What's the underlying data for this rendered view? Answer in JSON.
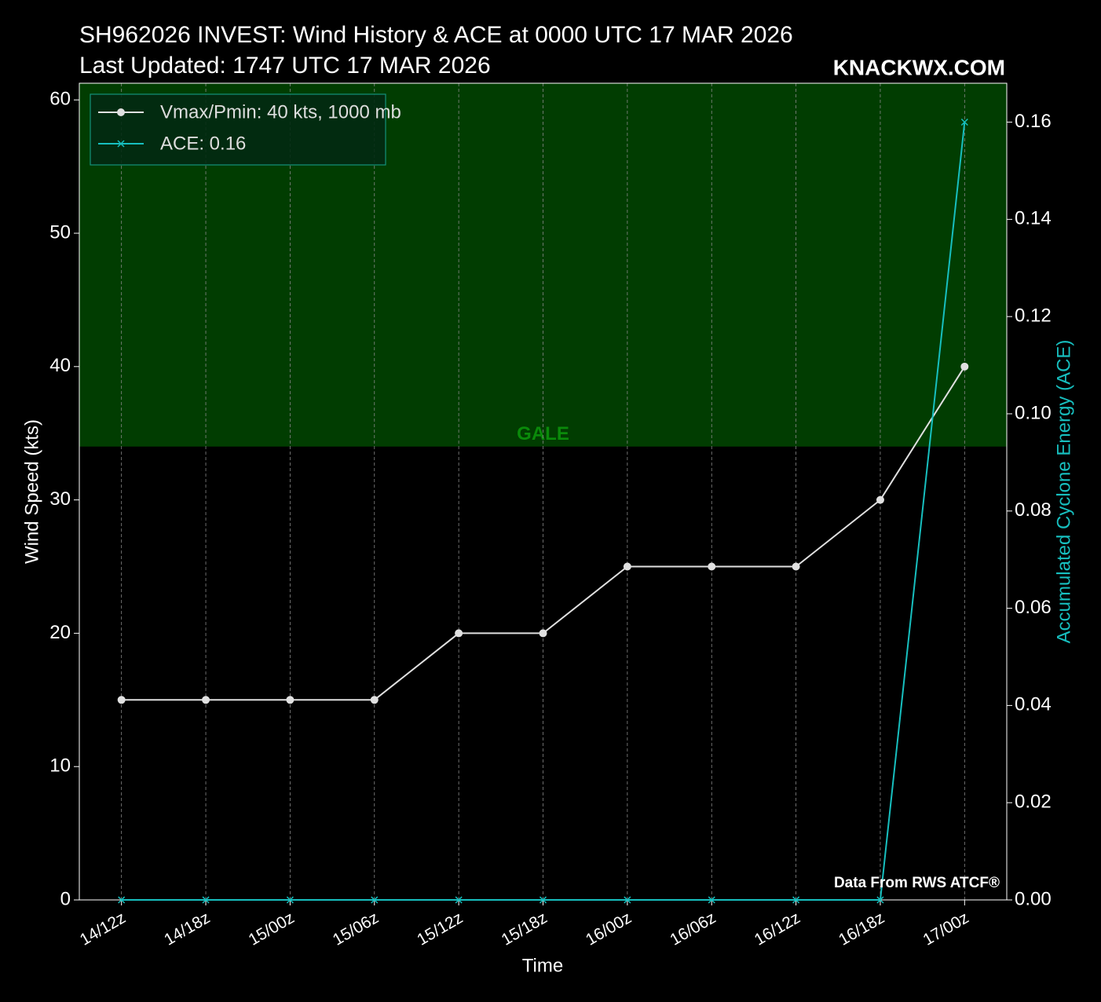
{
  "chart_data": {
    "type": "line",
    "title": "SH962026 INVEST: Wind History & ACE at 0000 UTC 17 MAR 2026",
    "subtitle": "Last Updated: 1747 UTC 17 MAR 2026",
    "brand": "KNACKWX.COM",
    "source": "Data From RWS ATCF®",
    "x_label": "Time",
    "y_label": "Wind Speed (kts)",
    "y2_label": "Accumulated Cyclone Energy (ACE)",
    "categories": [
      "14/12z",
      "14/18z",
      "15/00z",
      "15/06z",
      "15/12z",
      "15/18z",
      "16/00z",
      "16/06z",
      "16/12z",
      "16/18z",
      "17/00z"
    ],
    "series": [
      {
        "name": "Vmax/Pmin: 40 kts, 1000 mb",
        "color": "#e0e0e0",
        "marker": "circle",
        "values": [
          15,
          15,
          15,
          15,
          20,
          20,
          25,
          25,
          25,
          30,
          40
        ]
      },
      {
        "name": "ACE: 0.16",
        "color": "#17bfbf",
        "marker": "x",
        "axis": "y2",
        "values": [
          0,
          0,
          0,
          0,
          0,
          0,
          0,
          0,
          0,
          0,
          0.16
        ]
      }
    ],
    "ylim": [
      0,
      61.25
    ],
    "yticks": [
      0,
      10,
      20,
      30,
      40,
      50,
      60
    ],
    "y2lim": [
      0,
      0.168
    ],
    "y2ticks": [
      {
        "value": 0,
        "label": "0.00"
      },
      {
        "value": 0.02,
        "label": "0.02"
      },
      {
        "value": 0.04,
        "label": "0.04"
      },
      {
        "value": 0.06,
        "label": "0.06"
      },
      {
        "value": 0.08,
        "label": "0.08"
      },
      {
        "value": 0.1,
        "label": "0.10"
      },
      {
        "value": 0.12,
        "label": "0.12"
      },
      {
        "value": 0.14,
        "label": "0.14"
      },
      {
        "value": 0.16,
        "label": "0.16"
      }
    ],
    "bands": [
      {
        "from": 34,
        "label": "GALE",
        "color": "#013d01",
        "label_color": "#0a8a0a"
      }
    ],
    "grid": true,
    "legend": "upper left"
  }
}
